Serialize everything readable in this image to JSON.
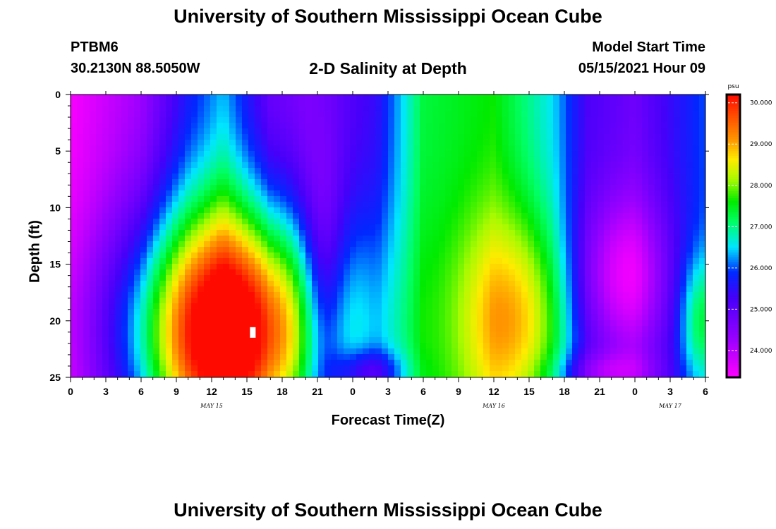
{
  "header": {
    "title": "University of Southern Mississippi Ocean Cube",
    "station": "PTBM6",
    "coords": "30.2130N  88.5050W",
    "subtitle": "2-D Salinity at Depth",
    "start_label": "Model Start Time",
    "start_value": "05/15/2021 Hour 09"
  },
  "footer": {
    "title": "University of Southern Mississippi Ocean Cube"
  },
  "chart_data": {
    "type": "heatmap",
    "title": "2-D Salinity at Depth",
    "xlabel": "Forecast Time(Z)",
    "ylabel": "Depth (ft)",
    "x_range_hours": [
      0,
      54
    ],
    "y_range_ft": [
      0,
      25
    ],
    "x_tick_labels": [
      "0",
      "3",
      "6",
      "9",
      "12",
      "15",
      "18",
      "21",
      "0",
      "3",
      "6",
      "9",
      "12",
      "15",
      "18",
      "21",
      "0",
      "3",
      "6"
    ],
    "y_tick_labels": [
      "0",
      "5",
      "10",
      "15",
      "20",
      "25"
    ],
    "day_labels": [
      {
        "text": "MAY 15",
        "hour": 12
      },
      {
        "text": "MAY 16",
        "hour": 36
      },
      {
        "text": "MAY 17",
        "hour": 51
      }
    ],
    "colorbar": {
      "unit": "psu",
      "min": 23.35,
      "max": 30.2,
      "tick_labels": [
        "24.000",
        "25.000",
        "26.000",
        "27.000",
        "28.000",
        "29.000",
        "30.000"
      ],
      "tick_values": [
        24,
        25,
        26,
        27,
        28,
        29,
        30
      ]
    },
    "surface_salinity_by_hour": [
      {
        "hour": 0,
        "psu": 23.4
      },
      {
        "hour": 6,
        "psu": 24.2
      },
      {
        "hour": 10,
        "psu": 25.6
      },
      {
        "hour": 13,
        "psu": 26.3
      },
      {
        "hour": 17,
        "psu": 24.8
      },
      {
        "hour": 20,
        "psu": 24.6
      },
      {
        "hour": 26,
        "psu": 25.4
      },
      {
        "hour": 30,
        "psu": 27.3
      },
      {
        "hour": 36,
        "psu": 27.6
      },
      {
        "hour": 41,
        "psu": 26.5
      },
      {
        "hour": 44,
        "psu": 25.2
      },
      {
        "hour": 48,
        "psu": 24.8
      },
      {
        "hour": 54,
        "psu": 26.0
      }
    ],
    "maxima": [
      {
        "hour": 15,
        "depth_ft": 21,
        "psu": 30.2
      },
      {
        "hour": 38,
        "depth_ft": 20,
        "psu": 29.0
      }
    ],
    "missing_cell": {
      "hour": 15.5,
      "depth_ft": 21
    }
  }
}
